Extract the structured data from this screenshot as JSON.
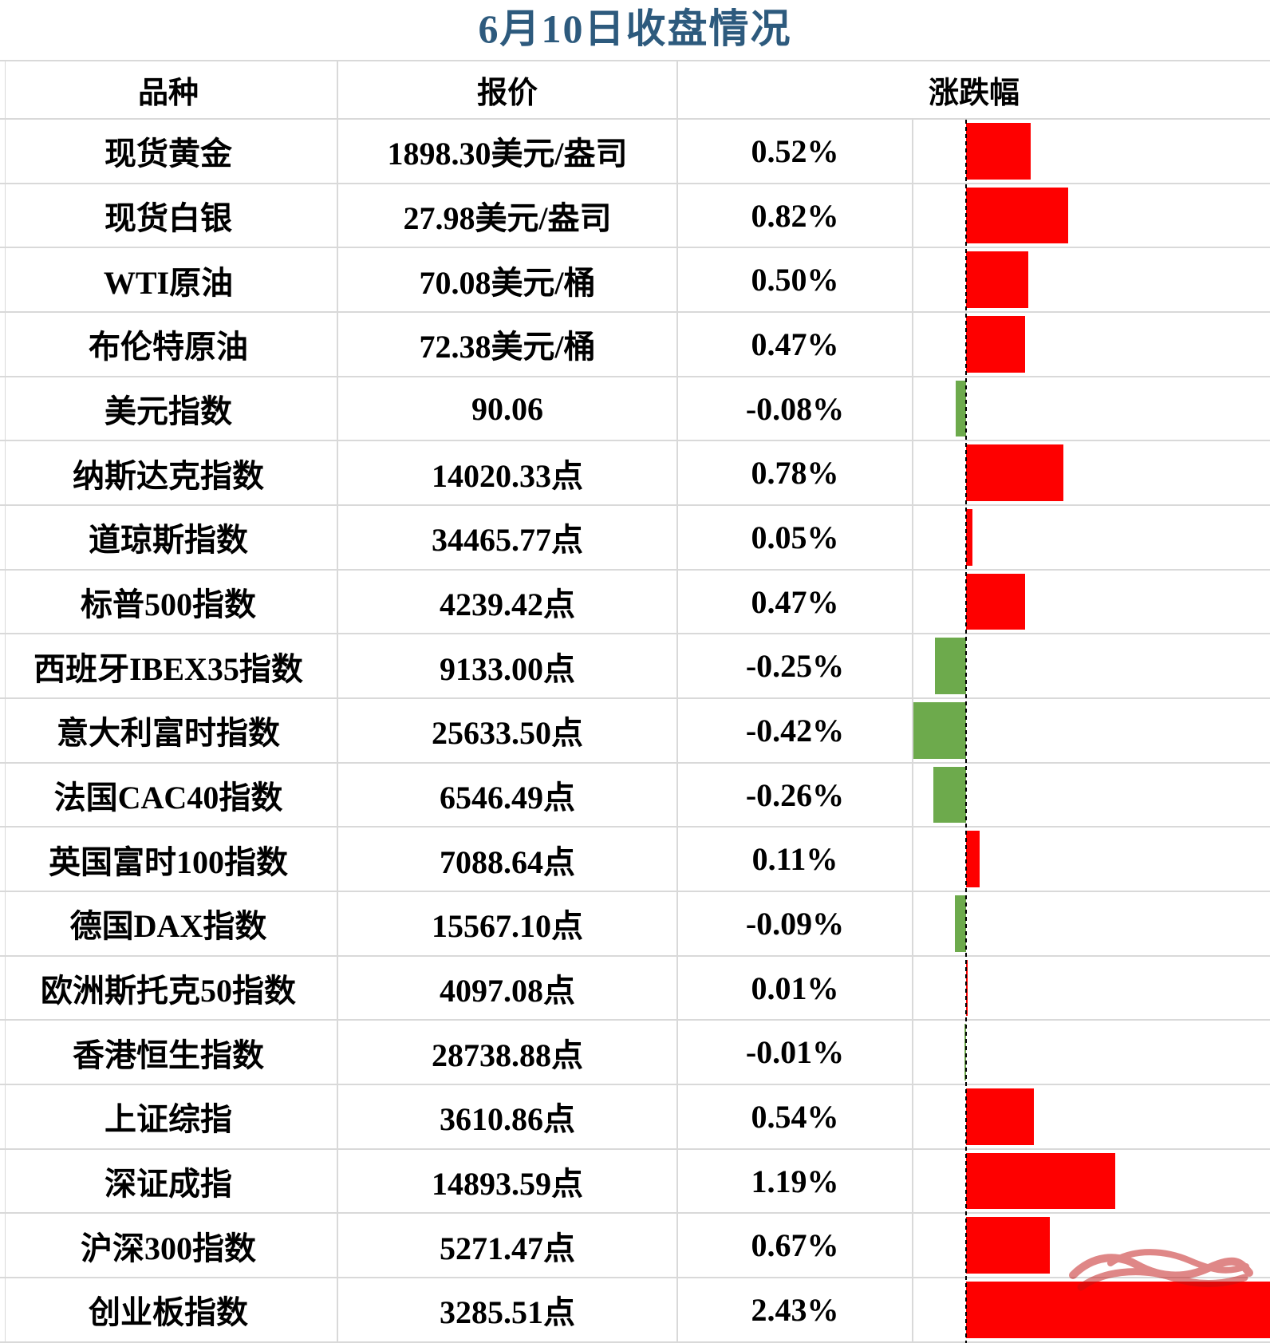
{
  "title": "6月10日收盘情况",
  "colors": {
    "up_bar": "#FE0000",
    "down_bar": "#6DAA4C",
    "title_text": "#2D5A7D",
    "grid_line": "#D9D9D9",
    "zero_axis": "#000000",
    "scribble": "#C01212"
  },
  "table": {
    "headers": {
      "name": "品种",
      "quote": "报价",
      "change": "涨跌幅"
    },
    "rows": [
      {
        "name": "现货黄金",
        "quote": "1898.30美元/盎司",
        "change": "0.52%",
        "value": 0.52
      },
      {
        "name": "现货白银",
        "quote": "27.98美元/盎司",
        "change": "0.82%",
        "value": 0.82
      },
      {
        "name": "WTI原油",
        "quote": "70.08美元/桶",
        "change": "0.50%",
        "value": 0.5
      },
      {
        "name": "布伦特原油",
        "quote": "72.38美元/桶",
        "change": "0.47%",
        "value": 0.47
      },
      {
        "name": "美元指数",
        "quote": "90.06",
        "change": "-0.08%",
        "value": -0.08
      },
      {
        "name": "纳斯达克指数",
        "quote": "14020.33点",
        "change": "0.78%",
        "value": 0.78
      },
      {
        "name": "道琼斯指数",
        "quote": "34465.77点",
        "change": "0.05%",
        "value": 0.05
      },
      {
        "name": "标普500指数",
        "quote": "4239.42点",
        "change": "0.47%",
        "value": 0.47
      },
      {
        "name": "西班牙IBEX35指数",
        "quote": "9133.00点",
        "change": "-0.25%",
        "value": -0.25
      },
      {
        "name": "意大利富时指数",
        "quote": "25633.50点",
        "change": "-0.42%",
        "value": -0.42
      },
      {
        "name": "法国CAC40指数",
        "quote": "6546.49点",
        "change": "-0.26%",
        "value": -0.26
      },
      {
        "name": "英国富时100指数",
        "quote": "7088.64点",
        "change": "0.11%",
        "value": 0.11
      },
      {
        "name": "德国DAX指数",
        "quote": "15567.10点",
        "change": "-0.09%",
        "value": -0.09
      },
      {
        "name": "欧洲斯托克50指数",
        "quote": "4097.08点",
        "change": "0.01%",
        "value": 0.01
      },
      {
        "name": "香港恒生指数",
        "quote": "28738.88点",
        "change": "-0.01%",
        "value": -0.01
      },
      {
        "name": "上证综指",
        "quote": "3610.86点",
        "change": "0.54%",
        "value": 0.54
      },
      {
        "name": "深证成指",
        "quote": "14893.59点",
        "change": "1.19%",
        "value": 1.19
      },
      {
        "name": "沪深300指数",
        "quote": "5271.47点",
        "change": "0.67%",
        "value": 0.67
      },
      {
        "name": "创业板指数",
        "quote": "3285.51点",
        "change": "2.43%",
        "value": 2.43
      }
    ]
  },
  "chart_data": {
    "type": "bar",
    "orientation": "horizontal",
    "title": "6月10日收盘情况",
    "categories": [
      "现货黄金",
      "现货白银",
      "WTI原油",
      "布伦特原油",
      "美元指数",
      "纳斯达克指数",
      "道琼斯指数",
      "标普500指数",
      "西班牙IBEX35指数",
      "意大利富时指数",
      "法国CAC40指数",
      "英国富时100指数",
      "德国DAX指数",
      "欧洲斯托克50指数",
      "香港恒生指数",
      "上证综指",
      "深证成指",
      "沪深300指数",
      "创业板指数"
    ],
    "values": [
      0.52,
      0.82,
      0.5,
      0.47,
      -0.08,
      0.78,
      0.05,
      0.47,
      -0.25,
      -0.42,
      -0.26,
      0.11,
      -0.09,
      0.01,
      -0.01,
      0.54,
      1.19,
      0.67,
      2.43
    ],
    "value_unit": "%",
    "xlabel": "涨跌幅",
    "xlim": [
      -0.42,
      2.43
    ],
    "grid": false,
    "legend": "none",
    "positive_color": "#FE0000",
    "negative_color": "#6DAA4C"
  }
}
